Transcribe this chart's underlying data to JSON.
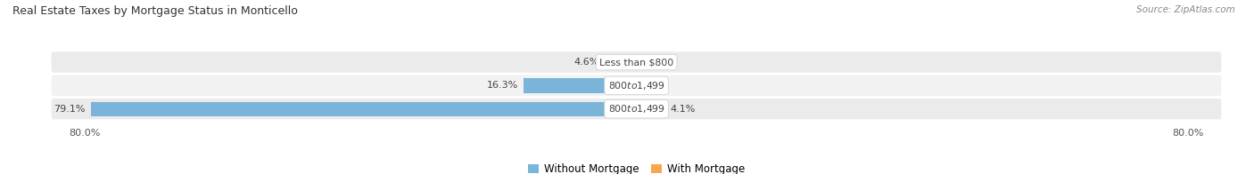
{
  "title": "Real Estate Taxes by Mortgage Status in Monticello",
  "source": "Source: ZipAtlas.com",
  "bars": [
    {
      "label": "Less than $800",
      "without_mortgage": 4.6,
      "with_mortgage": 0.0
    },
    {
      "label": "$800 to $1,499",
      "without_mortgage": 16.3,
      "with_mortgage": 0.0
    },
    {
      "label": "$800 to $1,499",
      "without_mortgage": 79.1,
      "with_mortgage": 4.1
    }
  ],
  "x_max": 100.0,
  "x_left_label": "80.0%",
  "x_right_label": "80.0%",
  "color_without": "#7ab4d8",
  "color_with": "#f5a84e",
  "bg_row_even": "#ebebeb",
  "bg_row_odd": "#f2f2f2",
  "legend_without": "Without Mortgage",
  "legend_with": "With Mortgage",
  "title_fontsize": 9.0,
  "source_fontsize": 7.5,
  "bar_label_fontsize": 8.0,
  "category_fontsize": 7.8,
  "pill_bg": "white"
}
